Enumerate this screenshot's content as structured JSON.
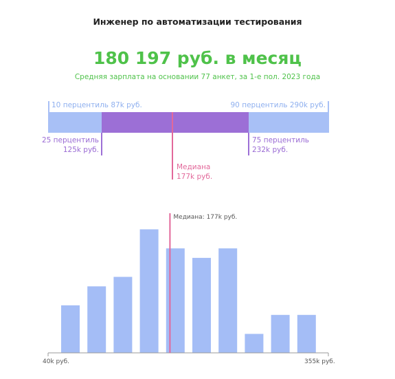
{
  "header": {
    "job_title": "Инженер по автоматизации тестирования",
    "salary_text": "180 197 руб. в месяц",
    "subtitle": "Средняя зарплата на основании 77 анкет, за 1-е пол. 2023 года"
  },
  "percentiles": {
    "p10_label": "10 перцентиль 87k руб.",
    "p90_label": "90 перцентиль 290k руб.",
    "p25_label_line1": "25 перцентиль",
    "p25_label_line2": "125k руб.",
    "p75_label_line1": "75 перцентиль",
    "p75_label_line2": "232k руб.",
    "median_label_line1": "Медиана",
    "median_label_line2": "177k руб."
  },
  "colors": {
    "accent_green": "#4fc24a",
    "range_10_90": "#a8c0f6",
    "range_25_75": "#9c6fd6",
    "median": "#e2689a",
    "histogram_bar": "#a4bdf6"
  },
  "chart_data": {
    "type": "bar",
    "title": "",
    "xlabel": "",
    "ylabel": "",
    "x_min_label": "40k руб.",
    "x_max_label": "355k руб.",
    "xlim": [
      40,
      355
    ],
    "median_value": 177,
    "median_label": "Медиана: 177k руб.",
    "bin_count": 10,
    "values": [
      5,
      7,
      8,
      13,
      11,
      10,
      11,
      2,
      4,
      4
    ],
    "ylim": [
      0,
      16
    ]
  }
}
